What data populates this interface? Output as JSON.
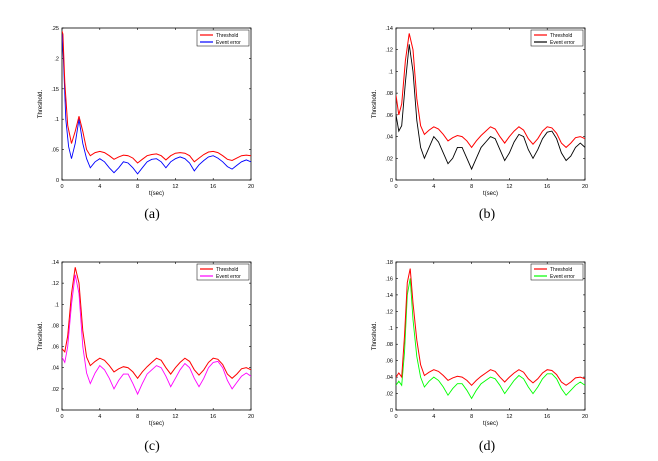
{
  "figure": {
    "panels": [
      "(a)",
      "(b)",
      "(c)",
      "(d)"
    ]
  },
  "chart_data": [
    {
      "type": "line",
      "panel_label": "(a)",
      "xlabel": "t(sec)",
      "ylabel": "Threshold.",
      "xlim": [
        0,
        20
      ],
      "ylim": [
        0,
        0.25
      ],
      "xticks": [
        0,
        4,
        8,
        12,
        16,
        20
      ],
      "yticks": [
        0,
        0.05,
        0.1,
        0.15,
        0.2,
        0.25
      ],
      "legend": [
        "Threshold",
        "Event error"
      ],
      "colors": {
        "threshold": "#ff0000",
        "error": "#0000ff"
      },
      "series": [
        {
          "name": "Threshold",
          "x": [
            0,
            0.1,
            0.3,
            0.6,
            1.0,
            1.4,
            1.8,
            2.2,
            2.6,
            3.0,
            3.5,
            4.0,
            4.5,
            5.0,
            5.5,
            6.0,
            6.5,
            7.0,
            7.5,
            8.0,
            8.5,
            9.0,
            9.5,
            10.0,
            10.5,
            11.0,
            11.5,
            12.0,
            12.5,
            13.0,
            13.5,
            14.0,
            14.5,
            15.0,
            15.5,
            16.0,
            16.5,
            17.0,
            17.5,
            18.0,
            18.5,
            19.0,
            19.5,
            20.0
          ],
          "y": [
            0.245,
            0.24,
            0.16,
            0.09,
            0.06,
            0.08,
            0.105,
            0.08,
            0.05,
            0.04,
            0.045,
            0.047,
            0.045,
            0.04,
            0.034,
            0.038,
            0.041,
            0.04,
            0.036,
            0.028,
            0.034,
            0.04,
            0.042,
            0.043,
            0.04,
            0.033,
            0.04,
            0.044,
            0.045,
            0.044,
            0.04,
            0.03,
            0.036,
            0.042,
            0.046,
            0.047,
            0.045,
            0.04,
            0.034,
            0.032,
            0.036,
            0.04,
            0.041,
            0.04
          ]
        },
        {
          "name": "Event error",
          "x": [
            0,
            0.15,
            0.4,
            0.7,
            1.0,
            1.4,
            1.8,
            2.2,
            2.6,
            3.0,
            3.5,
            4.0,
            4.5,
            5.0,
            5.5,
            6.0,
            6.5,
            7.0,
            7.5,
            8.0,
            8.5,
            9.0,
            9.5,
            10.0,
            10.5,
            11.0,
            11.5,
            12.0,
            12.5,
            13.0,
            13.5,
            14.0,
            14.5,
            15.0,
            15.5,
            16.0,
            16.5,
            17.0,
            17.5,
            18.0,
            18.5,
            19.0,
            19.5,
            20.0
          ],
          "y": [
            0.24,
            0.2,
            0.1,
            0.055,
            0.035,
            0.06,
            0.1,
            0.06,
            0.035,
            0.02,
            0.03,
            0.035,
            0.03,
            0.02,
            0.012,
            0.02,
            0.03,
            0.028,
            0.02,
            0.01,
            0.02,
            0.03,
            0.034,
            0.035,
            0.03,
            0.02,
            0.03,
            0.035,
            0.038,
            0.035,
            0.028,
            0.015,
            0.025,
            0.032,
            0.038,
            0.04,
            0.036,
            0.03,
            0.022,
            0.018,
            0.024,
            0.03,
            0.033,
            0.03
          ]
        }
      ]
    },
    {
      "type": "line",
      "panel_label": "(b)",
      "xlabel": "t(sec)",
      "ylabel": "Threshold.",
      "xlim": [
        0,
        20
      ],
      "ylim": [
        0,
        0.14
      ],
      "xticks": [
        0,
        4,
        8,
        12,
        16,
        20
      ],
      "yticks": [
        0,
        0.02,
        0.04,
        0.06,
        0.08,
        0.1,
        0.12,
        0.14
      ],
      "legend": [
        "Threshold",
        "Event error"
      ],
      "colors": {
        "threshold": "#ff0000",
        "error": "#000000"
      },
      "series": [
        {
          "name": "Threshold",
          "x": [
            0,
            0.3,
            0.6,
            1.0,
            1.4,
            1.8,
            2.2,
            2.6,
            3.0,
            3.5,
            4.0,
            4.5,
            5.0,
            5.5,
            6.0,
            6.5,
            7.0,
            7.5,
            8.0,
            8.5,
            9.0,
            9.5,
            10.0,
            10.5,
            11.0,
            11.5,
            12.0,
            12.5,
            13.0,
            13.5,
            14.0,
            14.5,
            15.0,
            15.5,
            16.0,
            16.5,
            17.0,
            17.5,
            18.0,
            18.5,
            19.0,
            19.5,
            20.0
          ],
          "y": [
            0.078,
            0.06,
            0.07,
            0.11,
            0.135,
            0.12,
            0.075,
            0.05,
            0.042,
            0.046,
            0.049,
            0.047,
            0.042,
            0.036,
            0.039,
            0.041,
            0.04,
            0.036,
            0.03,
            0.036,
            0.041,
            0.045,
            0.049,
            0.047,
            0.04,
            0.034,
            0.04,
            0.045,
            0.049,
            0.046,
            0.038,
            0.033,
            0.038,
            0.045,
            0.049,
            0.048,
            0.043,
            0.034,
            0.03,
            0.034,
            0.039,
            0.04,
            0.038
          ]
        },
        {
          "name": "Event error",
          "x": [
            0,
            0.3,
            0.6,
            1.0,
            1.4,
            1.8,
            2.2,
            2.6,
            3.0,
            3.5,
            4.0,
            4.5,
            5.0,
            5.5,
            6.0,
            6.5,
            7.0,
            7.5,
            8.0,
            8.5,
            9.0,
            9.5,
            10.0,
            10.5,
            11.0,
            11.5,
            12.0,
            12.5,
            13.0,
            13.5,
            14.0,
            14.5,
            15.0,
            15.5,
            16.0,
            16.5,
            17.0,
            17.5,
            18.0,
            18.5,
            19.0,
            19.5,
            20.0
          ],
          "y": [
            0.06,
            0.045,
            0.05,
            0.09,
            0.125,
            0.1,
            0.055,
            0.03,
            0.02,
            0.03,
            0.04,
            0.035,
            0.025,
            0.015,
            0.02,
            0.03,
            0.03,
            0.02,
            0.01,
            0.02,
            0.03,
            0.035,
            0.04,
            0.038,
            0.028,
            0.018,
            0.025,
            0.035,
            0.042,
            0.04,
            0.028,
            0.02,
            0.028,
            0.038,
            0.044,
            0.045,
            0.038,
            0.025,
            0.018,
            0.022,
            0.03,
            0.034,
            0.03
          ]
        }
      ]
    },
    {
      "type": "line",
      "panel_label": "(c)",
      "xlabel": "t(sec)",
      "ylabel": "Threshold.",
      "xlim": [
        0,
        20
      ],
      "ylim": [
        0,
        0.14
      ],
      "xticks": [
        0,
        4,
        8,
        12,
        16,
        20
      ],
      "yticks": [
        0,
        0.02,
        0.04,
        0.06,
        0.08,
        0.1,
        0.12,
        0.14
      ],
      "legend": [
        "Threshold",
        "Event error"
      ],
      "colors": {
        "threshold": "#ff0000",
        "error": "#ff00ff"
      },
      "series": [
        {
          "name": "Threshold",
          "x": [
            0,
            0.3,
            0.6,
            1.0,
            1.4,
            1.8,
            2.2,
            2.6,
            3.0,
            3.5,
            4.0,
            4.5,
            5.0,
            5.5,
            6.0,
            6.5,
            7.0,
            7.5,
            8.0,
            8.5,
            9.0,
            9.5,
            10.0,
            10.5,
            11.0,
            11.5,
            12.0,
            12.5,
            13.0,
            13.5,
            14.0,
            14.5,
            15.0,
            15.5,
            16.0,
            16.5,
            17.0,
            17.5,
            18.0,
            18.5,
            19.0,
            19.5,
            20.0
          ],
          "y": [
            0.058,
            0.055,
            0.07,
            0.11,
            0.135,
            0.12,
            0.075,
            0.05,
            0.042,
            0.046,
            0.049,
            0.047,
            0.042,
            0.036,
            0.039,
            0.041,
            0.04,
            0.036,
            0.03,
            0.036,
            0.041,
            0.045,
            0.049,
            0.047,
            0.04,
            0.034,
            0.04,
            0.045,
            0.049,
            0.046,
            0.038,
            0.033,
            0.038,
            0.045,
            0.049,
            0.048,
            0.043,
            0.034,
            0.03,
            0.034,
            0.039,
            0.04,
            0.038
          ]
        },
        {
          "name": "Event error",
          "x": [
            0,
            0.3,
            0.6,
            1.0,
            1.4,
            1.8,
            2.2,
            2.6,
            3.0,
            3.5,
            4.0,
            4.5,
            5.0,
            5.5,
            6.0,
            6.5,
            7.0,
            7.5,
            8.0,
            8.5,
            9.0,
            9.5,
            10.0,
            10.5,
            11.0,
            11.5,
            12.0,
            12.5,
            13.0,
            13.5,
            14.0,
            14.5,
            15.0,
            15.5,
            16.0,
            16.5,
            17.0,
            17.5,
            18.0,
            18.5,
            19.0,
            19.5,
            20.0
          ],
          "y": [
            0.05,
            0.045,
            0.06,
            0.1,
            0.128,
            0.11,
            0.06,
            0.035,
            0.025,
            0.035,
            0.042,
            0.038,
            0.03,
            0.02,
            0.028,
            0.034,
            0.034,
            0.025,
            0.015,
            0.025,
            0.034,
            0.038,
            0.042,
            0.04,
            0.032,
            0.022,
            0.03,
            0.038,
            0.044,
            0.04,
            0.03,
            0.022,
            0.03,
            0.04,
            0.045,
            0.046,
            0.04,
            0.028,
            0.02,
            0.026,
            0.032,
            0.035,
            0.032
          ]
        }
      ]
    },
    {
      "type": "line",
      "panel_label": "(d)",
      "xlabel": "t(sec)",
      "ylabel": "Threshold.",
      "xlim": [
        0,
        20
      ],
      "ylim": [
        0,
        0.18
      ],
      "xticks": [
        0,
        4,
        8,
        12,
        16,
        20
      ],
      "yticks": [
        0,
        0.02,
        0.04,
        0.06,
        0.08,
        0.1,
        0.12,
        0.14,
        0.16,
        0.18
      ],
      "legend": [
        "Threshold",
        "Event error"
      ],
      "colors": {
        "threshold": "#ff0000",
        "error": "#00ff00"
      },
      "series": [
        {
          "name": "Threshold",
          "x": [
            0,
            0.3,
            0.6,
            0.9,
            1.2,
            1.5,
            1.8,
            2.2,
            2.6,
            3.0,
            3.5,
            4.0,
            4.5,
            5.0,
            5.5,
            6.0,
            6.5,
            7.0,
            7.5,
            8.0,
            8.5,
            9.0,
            9.5,
            10.0,
            10.5,
            11.0,
            11.5,
            12.0,
            12.5,
            13.0,
            13.5,
            14.0,
            14.5,
            15.0,
            15.5,
            16.0,
            16.5,
            17.0,
            17.5,
            18.0,
            18.5,
            19.0,
            19.5,
            20.0
          ],
          "y": [
            0.04,
            0.045,
            0.04,
            0.09,
            0.155,
            0.172,
            0.13,
            0.085,
            0.055,
            0.042,
            0.046,
            0.049,
            0.047,
            0.042,
            0.036,
            0.039,
            0.041,
            0.04,
            0.036,
            0.03,
            0.036,
            0.041,
            0.045,
            0.049,
            0.047,
            0.04,
            0.034,
            0.04,
            0.045,
            0.049,
            0.046,
            0.038,
            0.033,
            0.038,
            0.045,
            0.049,
            0.048,
            0.043,
            0.034,
            0.03,
            0.034,
            0.039,
            0.04,
            0.038
          ]
        },
        {
          "name": "Event error",
          "x": [
            0,
            0.3,
            0.6,
            0.9,
            1.2,
            1.5,
            1.8,
            2.2,
            2.6,
            3.0,
            3.5,
            4.0,
            4.5,
            5.0,
            5.5,
            6.0,
            6.5,
            7.0,
            7.5,
            8.0,
            8.5,
            9.0,
            9.5,
            10.0,
            10.5,
            11.0,
            11.5,
            12.0,
            12.5,
            13.0,
            13.5,
            14.0,
            14.5,
            15.0,
            15.5,
            16.0,
            16.5,
            17.0,
            17.5,
            18.0,
            18.5,
            19.0,
            19.5,
            20.0
          ],
          "y": [
            0.03,
            0.035,
            0.03,
            0.07,
            0.14,
            0.16,
            0.11,
            0.065,
            0.04,
            0.028,
            0.035,
            0.04,
            0.036,
            0.028,
            0.018,
            0.026,
            0.032,
            0.032,
            0.024,
            0.014,
            0.024,
            0.032,
            0.036,
            0.04,
            0.038,
            0.03,
            0.02,
            0.028,
            0.036,
            0.042,
            0.038,
            0.028,
            0.02,
            0.028,
            0.038,
            0.044,
            0.044,
            0.038,
            0.026,
            0.018,
            0.024,
            0.03,
            0.034,
            0.03
          ]
        }
      ]
    }
  ]
}
